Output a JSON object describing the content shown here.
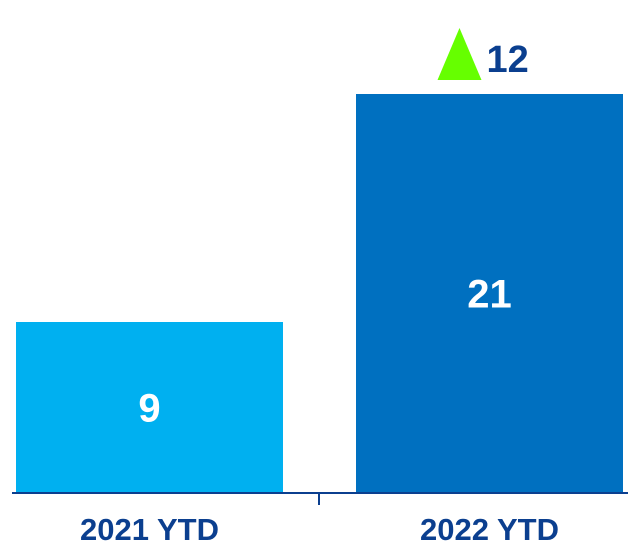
{
  "chart_data": {
    "type": "bar",
    "categories": [
      "2021 YTD",
      "2022 YTD"
    ],
    "values": [
      9,
      21
    ],
    "bar_colors": [
      "#00b0f0",
      "#0070c0"
    ],
    "axis_color": "#0b3f8f",
    "text_color": "#0b3f8f",
    "ylim": [
      0,
      21
    ],
    "grid": false,
    "annotation": {
      "text": "12",
      "icon": "up-triangle-icon",
      "icon_color": "#66ff00",
      "category": "2022 YTD"
    }
  }
}
